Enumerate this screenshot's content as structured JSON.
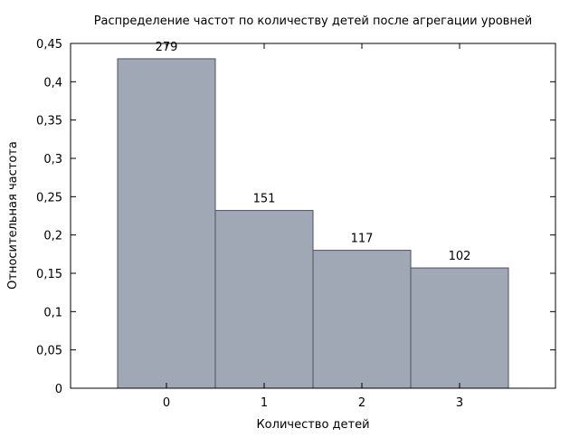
{
  "chart_data": {
    "type": "bar",
    "title": "Распределение частот по количеству детей после агрегации уровней",
    "xlabel": "Количество детей",
    "ylabel": "Относительная частота",
    "categories": [
      "0",
      "1",
      "2",
      "3"
    ],
    "values": [
      0.43,
      0.232,
      0.18,
      0.157
    ],
    "data_labels": [
      "279",
      "151",
      "117",
      "102"
    ],
    "ylim": [
      0,
      0.45
    ],
    "yticks": [
      0,
      0.05,
      0.1,
      0.15,
      0.2,
      0.25,
      0.3,
      0.35,
      0.4,
      0.45
    ],
    "ytick_labels": [
      "0",
      "0,05",
      "0,1",
      "0,15",
      "0,2",
      "0,25",
      "0,3",
      "0,35",
      "0,4",
      "0,45"
    ],
    "grid": false,
    "legend": "none",
    "colors": {
      "bar_fill": "#a0a8b6",
      "bar_stroke": "#4a5260",
      "axis": "#000000"
    }
  }
}
